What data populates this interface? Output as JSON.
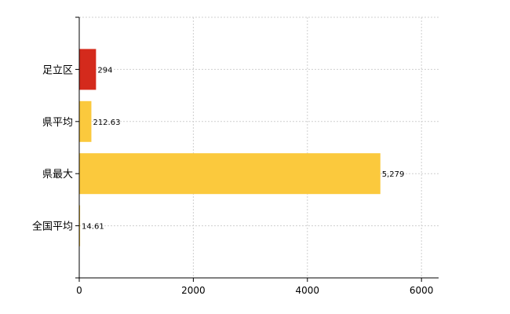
{
  "chart_data": {
    "type": "bar",
    "orientation": "horizontal",
    "categories": [
      "足立区",
      "県平均",
      "県最大",
      "全国平均"
    ],
    "values": [
      294,
      212.63,
      5279,
      14.61
    ],
    "value_labels": [
      "294",
      "212.63",
      "5,279",
      "14.61"
    ],
    "colors": [
      "#d42a1c",
      "#fbc93d",
      "#fbc93d",
      "#fbc93d"
    ],
    "xlim": [
      0,
      6300
    ],
    "xticks": [
      0,
      2000,
      4000,
      6000
    ],
    "xtick_labels": [
      "0",
      "2000",
      "4000",
      "6000"
    ],
    "grid": true,
    "title": "",
    "xlabel": "",
    "ylabel": ""
  }
}
